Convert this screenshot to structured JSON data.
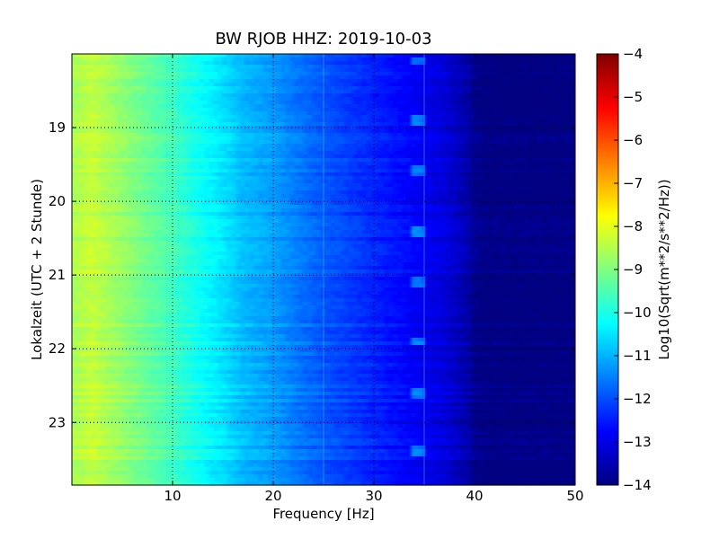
{
  "chart_data": {
    "type": "heatmap",
    "title": "BW RJOB HHZ: 2019-10-03",
    "xlabel": "Frequency [Hz]",
    "ylabel": "Lokalzeit (UTC + 2 Stunde)",
    "xlim": [
      0,
      50
    ],
    "ylim": [
      18.0,
      23.85
    ],
    "y_inverted": true,
    "x_ticks": [
      10,
      20,
      30,
      40,
      50
    ],
    "y_ticks": [
      19,
      20,
      21,
      22,
      23
    ],
    "grid": true,
    "colorbar": {
      "label": "Log10(Sqrt(m**2/s**2/Hz))",
      "range": [
        -14,
        -4
      ],
      "ticks": [
        -4,
        -5,
        -6,
        -7,
        -8,
        -9,
        -10,
        -11,
        -12,
        -13,
        -14
      ],
      "colormap": "jet"
    },
    "spectral_profile": {
      "frequency_hz": [
        0,
        2,
        5,
        8,
        10,
        12,
        15,
        17,
        20,
        22,
        25,
        28,
        30,
        32,
        35,
        37,
        38,
        39,
        40,
        41,
        50
      ],
      "log10_amplitude": [
        -8.6,
        -8.3,
        -8.8,
        -9.3,
        -9.6,
        -10.0,
        -10.5,
        -10.9,
        -11.2,
        -11.5,
        -11.9,
        -12.2,
        -12.4,
        -12.6,
        -12.9,
        -13.1,
        -13.3,
        -13.5,
        -13.8,
        -14.0,
        -14.0
      ]
    },
    "recurring_signal": {
      "frequency_hz": 34.5,
      "times_h": [
        18.1,
        18.9,
        19.6,
        20.4,
        21.1,
        21.9,
        22.6,
        23.4
      ]
    },
    "vertical_lines_hz": [
      25,
      35
    ]
  }
}
